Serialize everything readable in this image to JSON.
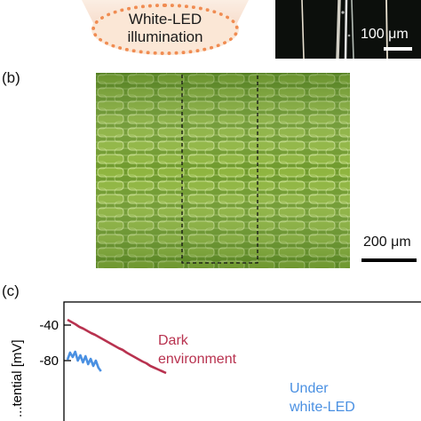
{
  "panel_a": {
    "illumination_label_line1": "White-LED",
    "illumination_label_line2": "illumination",
    "scale_bar_label": "100 μm"
  },
  "panel_b": {
    "label": "(b)",
    "scale_bar_label": "200 μm"
  },
  "panel_c": {
    "label": "(c)"
  },
  "colors": {
    "dark_series": "#b8324f",
    "led_series": "#4a90e2",
    "led_orange": "#f08c52"
  },
  "chart_data": {
    "type": "line",
    "ylabel": "...tential [mV]",
    "yticks": [
      -40,
      -80
    ],
    "annotations": [
      {
        "line1": "Dark",
        "line2": "environment",
        "series": "dark"
      },
      {
        "line1": "Under",
        "line2": "white-LED",
        "series": "led"
      }
    ],
    "series": [
      {
        "key": "dark",
        "name": "Dark environment",
        "x": [
          0,
          2,
          4,
          6,
          8,
          10,
          12,
          14,
          16,
          18,
          20,
          22,
          24,
          26,
          28,
          30,
          32,
          34,
          36,
          38,
          40,
          42,
          44,
          46,
          48,
          50
        ],
        "values": [
          -34,
          -36.5,
          -39,
          -42,
          -44,
          -46.5,
          -49,
          -51,
          -53.5,
          -56,
          -58.5,
          -61,
          -63.5,
          -66,
          -68,
          -71,
          -73.5,
          -76,
          -78.5,
          -81,
          -83,
          -86,
          -88,
          -90,
          -92,
          -94
        ]
      },
      {
        "key": "led",
        "name": "Under white-LED",
        "x": [
          0,
          1,
          2,
          3,
          4,
          5,
          6,
          7,
          8,
          9,
          10,
          11,
          12,
          13
        ],
        "values": [
          -79,
          -71,
          -76,
          -70,
          -80,
          -74,
          -82,
          -75,
          -84,
          -78,
          -86,
          -80,
          -88,
          -92
        ]
      }
    ]
  }
}
